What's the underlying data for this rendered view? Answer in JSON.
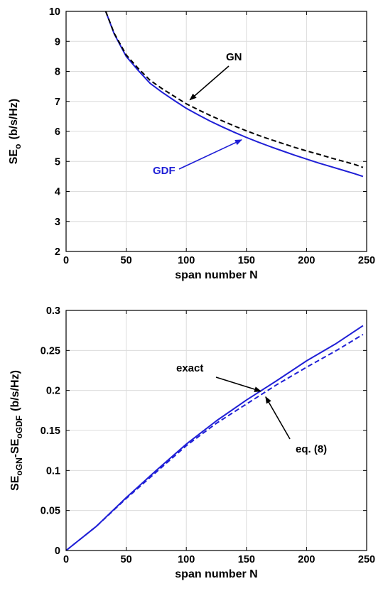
{
  "chart_data": [
    {
      "type": "line",
      "xlabel": "span number N",
      "ylabel": "SE",
      "ylabel_sub": "o",
      "ylabel_unit": "(b/s/Hz)",
      "xlim": [
        0,
        250
      ],
      "ylim": [
        2,
        10
      ],
      "xticks": [
        0,
        50,
        100,
        150,
        200,
        250
      ],
      "yticks": [
        2,
        3,
        4,
        5,
        6,
        7,
        8,
        9,
        10
      ],
      "grid": true,
      "series": [
        {
          "name": "GDF",
          "style": "solid",
          "color": "#1f1fd6",
          "x": [
            33,
            40,
            50,
            60,
            70,
            80,
            90,
            100,
            110,
            120,
            130,
            140,
            150,
            160,
            170,
            180,
            190,
            200,
            210,
            220,
            230,
            240,
            247
          ],
          "y": [
            10.0,
            9.25,
            8.5,
            8.03,
            7.6,
            7.3,
            7.03,
            6.77,
            6.55,
            6.34,
            6.15,
            5.97,
            5.8,
            5.64,
            5.49,
            5.35,
            5.21,
            5.08,
            4.95,
            4.83,
            4.71,
            4.59,
            4.5
          ]
        },
        {
          "name": "GN",
          "style": "dashed",
          "color": "#000000",
          "x": [
            33,
            40,
            50,
            60,
            70,
            80,
            90,
            100,
            110,
            120,
            130,
            140,
            150,
            160,
            170,
            180,
            190,
            200,
            210,
            220,
            230,
            240,
            247
          ],
          "y": [
            10.0,
            9.27,
            8.55,
            8.1,
            7.7,
            7.42,
            7.17,
            6.92,
            6.72,
            6.53,
            6.35,
            6.18,
            6.02,
            5.87,
            5.73,
            5.6,
            5.47,
            5.35,
            5.24,
            5.12,
            5.01,
            4.9,
            4.8
          ]
        }
      ],
      "annotations": [
        {
          "text": "GN",
          "arrow_to": [
            103,
            7.05
          ]
        },
        {
          "text": "GDF",
          "arrow_to": [
            146,
            5.72
          ]
        }
      ]
    },
    {
      "type": "line",
      "xlabel": "span number N",
      "ylabel_parts": [
        "SE",
        "oGN",
        "-SE",
        "oGDF",
        "(b/s/Hz)"
      ],
      "xlim": [
        0,
        250
      ],
      "ylim": [
        0,
        0.3
      ],
      "xticks": [
        0,
        50,
        100,
        150,
        200,
        250
      ],
      "yticks": [
        0,
        0.05,
        0.1,
        0.15,
        0.2,
        0.25,
        0.3
      ],
      "xtick_labels": [
        "0",
        "50",
        "100",
        "150",
        "200",
        "250"
      ],
      "ytick_labels": [
        "0",
        "0.05",
        "0.1",
        "0.15",
        "0.2",
        "0.25",
        "0.3"
      ],
      "grid": true,
      "series": [
        {
          "name": "exact",
          "style": "solid",
          "color": "#1f1fd6",
          "x": [
            0,
            10,
            25,
            50,
            75,
            100,
            125,
            150,
            175,
            200,
            225,
            247
          ],
          "y": [
            0,
            0.012,
            0.03,
            0.066,
            0.1,
            0.133,
            0.162,
            0.188,
            0.212,
            0.237,
            0.259,
            0.281
          ]
        },
        {
          "name": "eq. (8)",
          "style": "dashed",
          "color": "#1f1fd6",
          "x": [
            0,
            10,
            25,
            50,
            75,
            100,
            125,
            150,
            175,
            200,
            225,
            247
          ],
          "y": [
            0,
            0.012,
            0.03,
            0.065,
            0.098,
            0.131,
            0.159,
            0.183,
            0.207,
            0.229,
            0.25,
            0.27
          ]
        }
      ],
      "annotations": [
        {
          "text": "exact",
          "arrow_to": [
            162,
            0.199
          ]
        },
        {
          "text": "eq. (8)",
          "arrow_to": [
            166,
            0.192
          ]
        }
      ]
    }
  ]
}
